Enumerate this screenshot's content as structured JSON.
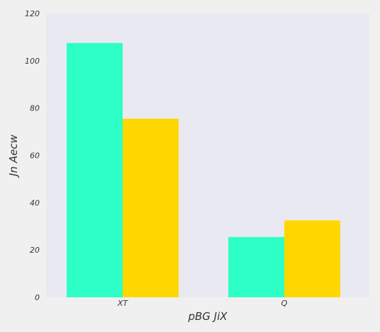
{
  "chart_data": {
    "type": "bar",
    "title": "",
    "xlabel": "pBG JiX",
    "ylabel": "Jn Aecw",
    "categories": [
      "XT",
      "Q"
    ],
    "series": [
      {
        "values": [
          107.5,
          25.5
        ],
        "color": "#2effc6"
      },
      {
        "values": [
          75.5,
          32.5
        ],
        "color": "#ffd700"
      }
    ],
    "ylim": [
      0,
      120
    ],
    "yticks": [
      0,
      20,
      40,
      60,
      80,
      100,
      120
    ],
    "grid": false,
    "plot_background": "#e9e9f1",
    "figure_background": "#f0f0f0"
  }
}
